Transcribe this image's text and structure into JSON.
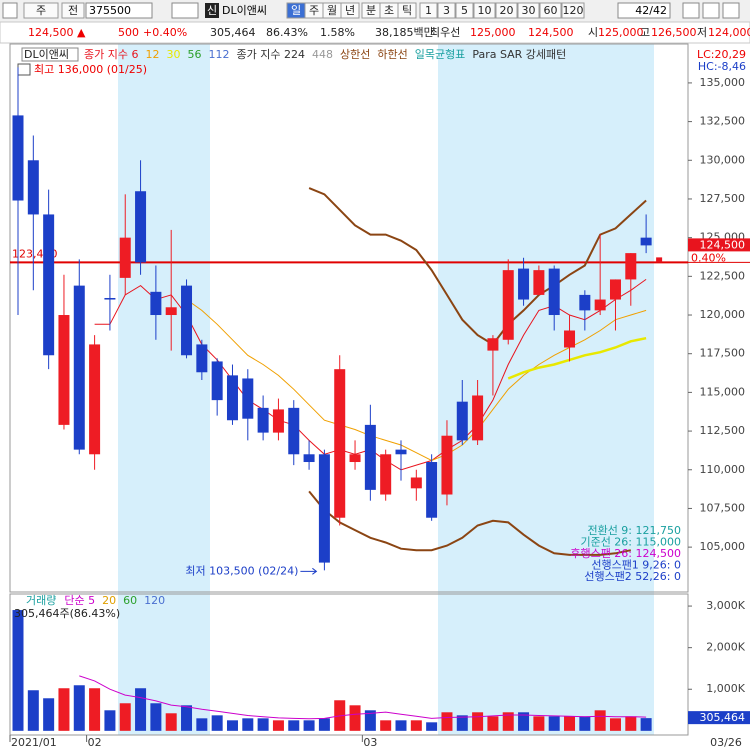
{
  "toolbar": {
    "market": "주",
    "board": "전",
    "code": "375500",
    "badge": "신",
    "name": "DL이앤씨",
    "periods": [
      "일",
      "주",
      "월",
      "년",
      "분",
      "초",
      "틱"
    ],
    "intervals": [
      "1",
      "3",
      "5",
      "10",
      "20",
      "30",
      "60",
      "120"
    ],
    "count": "42/42"
  },
  "quote": [
    "124,500 ▲",
    "500",
    "+0.40%",
    "305,464",
    "86.43%",
    "1.58%",
    "38,185백만",
    "최우선",
    "125,000",
    "124,500",
    "시",
    "125,000",
    "고",
    "126,500",
    "저",
    "124,000"
  ],
  "chart_data": [
    {
      "type": "candlestick",
      "stock_label": "DL이앤씨",
      "high_label": "최고 136,000 (01/25)",
      "low_label": "최저 103,500 (02/24)",
      "corner_lc": "LC:20,29",
      "corner_hc": "HC:-8,46",
      "categories": [
        "2021/01",
        null,
        null,
        null,
        null,
        "02",
        null,
        null,
        null,
        null,
        null,
        null,
        null,
        null,
        null,
        null,
        null,
        null,
        null,
        null,
        null,
        null,
        null,
        "03",
        null,
        null,
        null,
        null,
        null,
        null,
        null,
        null,
        null,
        null,
        null,
        null,
        null,
        null,
        null,
        null,
        null,
        null
      ],
      "open": [
        132900,
        130000,
        126500,
        112900,
        121900,
        111000,
        121100,
        122400,
        128000,
        121500,
        120000,
        121900,
        118100,
        117000,
        116100,
        115900,
        114000,
        112400,
        114000,
        111000,
        111000,
        106900,
        110500,
        112900,
        108400,
        111300,
        108800,
        110500,
        108400,
        114400,
        111900,
        117700,
        118400,
        123000,
        121300,
        123000,
        117900,
        121300,
        120300,
        121000,
        122300,
        125000
      ],
      "high": [
        136000,
        131600,
        128100,
        122600,
        123600,
        118700,
        122600,
        127800,
        130000,
        123200,
        125500,
        122300,
        118400,
        117200,
        116800,
        116500,
        114800,
        114600,
        114500,
        111900,
        111300,
        117400,
        111900,
        114200,
        111300,
        111900,
        110000,
        111000,
        113200,
        115800,
        115800,
        118700,
        123600,
        123700,
        123200,
        123200,
        120000,
        121600,
        125200,
        122300,
        124000,
        126500
      ],
      "low": [
        120000,
        121600,
        116500,
        112600,
        111000,
        110000,
        119000,
        121300,
        122600,
        118400,
        117700,
        117200,
        115800,
        113500,
        112900,
        111900,
        111900,
        111900,
        110300,
        110000,
        103500,
        106400,
        110000,
        108000,
        108000,
        109300,
        108000,
        106700,
        107700,
        111600,
        111600,
        114800,
        118100,
        120600,
        121300,
        119000,
        117000,
        119000,
        120000,
        119000,
        120600,
        124000
      ],
      "close": [
        127400,
        126500,
        117400,
        120000,
        111300,
        118100,
        121000,
        125000,
        123400,
        120000,
        120500,
        117400,
        116300,
        114500,
        113200,
        113300,
        112400,
        113900,
        111000,
        110500,
        104000,
        116500,
        111000,
        108700,
        111000,
        111000,
        109500,
        106900,
        112200,
        111900,
        114800,
        118500,
        122900,
        121000,
        122900,
        120000,
        119000,
        120300,
        121000,
        122300,
        124000,
        124500
      ],
      "up_color": "#ee1c24",
      "down_color": "#1c3fc8",
      "series": [
        {
          "name": "종가 지수 6",
          "color": "#e8141e",
          "values": [
            null,
            null,
            null,
            null,
            null,
            119400,
            119400,
            121300,
            121900,
            121000,
            121300,
            120000,
            118100,
            117100,
            115800,
            114500,
            113900,
            113200,
            112900,
            111900,
            111000,
            111300,
            111000,
            111300,
            110600,
            110000,
            110300,
            110600,
            111300,
            111900,
            112900,
            114500,
            116800,
            118700,
            120300,
            120600,
            120000,
            119700,
            120300,
            121000,
            121600,
            122300
          ]
        },
        {
          "name": "12",
          "color": "#f0a000",
          "values": [
            null,
            null,
            null,
            null,
            null,
            null,
            null,
            null,
            null,
            null,
            null,
            121000,
            120300,
            119400,
            118400,
            117400,
            116800,
            116100,
            115200,
            114200,
            113200,
            112900,
            112600,
            112200,
            111900,
            111600,
            111100,
            110600,
            111000,
            111600,
            112600,
            113900,
            115200,
            116100,
            116800,
            117400,
            117900,
            118400,
            119000,
            119700,
            120000,
            120300
          ]
        },
        {
          "name": "30",
          "color": "#e8e800",
          "values": [
            null,
            null,
            null,
            null,
            null,
            null,
            null,
            null,
            null,
            null,
            null,
            null,
            null,
            null,
            null,
            null,
            null,
            null,
            null,
            null,
            null,
            null,
            null,
            null,
            null,
            null,
            null,
            null,
            null,
            null,
            null,
            null,
            115900,
            116300,
            116600,
            116800,
            117100,
            117400,
            117600,
            117900,
            118300,
            118500
          ]
        },
        {
          "name": "56",
          "color": "#2ca02c"
        },
        {
          "name": "112",
          "color": "#4a6fd0"
        },
        {
          "name": "종가 지수 224",
          "color": "#333333"
        },
        {
          "name": "448",
          "color": "#999999"
        },
        {
          "name": "상한선",
          "color": "#8b4513",
          "values": [
            null,
            null,
            null,
            null,
            null,
            null,
            null,
            null,
            null,
            null,
            null,
            null,
            null,
            null,
            null,
            null,
            null,
            null,
            null,
            128200,
            127800,
            126800,
            125800,
            125200,
            125200,
            124800,
            124200,
            122900,
            121300,
            119700,
            118700,
            118100,
            119400,
            120300,
            121300,
            121900,
            122600,
            123200,
            125200,
            125600,
            126500,
            127400
          ]
        },
        {
          "name": "하한선",
          "color": "#8b4513",
          "values": [
            null,
            null,
            null,
            null,
            null,
            null,
            null,
            null,
            null,
            null,
            null,
            null,
            null,
            null,
            null,
            null,
            null,
            null,
            null,
            108600,
            107400,
            106600,
            106100,
            105600,
            105300,
            104900,
            104800,
            104800,
            105100,
            105600,
            106400,
            106700,
            106600,
            105800,
            105100,
            104600,
            104500,
            104500,
            104500,
            104600,
            104800,
            null
          ]
        },
        {
          "name": "일목균형표",
          "color": "#1aa0a0"
        },
        {
          "name": "Para SAR 강세패턴",
          "color": "#333333"
        }
      ],
      "ref_line": {
        "value": 123400,
        "label": "123,400",
        "color": "#e00000"
      },
      "last_label": "124,500",
      "change_label": "0.40%",
      "ichimoku_labels": [
        "전환선 9: 121,750",
        "기준선 26: 115,000",
        "후행스팬 26: 124,500",
        "선행스팬1 9,26: 0",
        "선행스팬2 52,26: 0"
      ],
      "ylim": [
        102100,
        137450
      ],
      "yticks": [
        {
          "value": 105000,
          "label": "105,000"
        },
        {
          "value": 107500,
          "label": "107,500"
        },
        {
          "value": 110000,
          "label": "110,000"
        },
        {
          "value": 112500,
          "label": "112,500"
        },
        {
          "value": 115000,
          "label": "115,000"
        },
        {
          "value": 117500,
          "label": "117,500"
        },
        {
          "value": 120000,
          "label": "120,000"
        },
        {
          "value": 122500,
          "label": "122,500"
        },
        {
          "value": 125000,
          "label": "125,000"
        },
        {
          "value": 127500,
          "label": "127,500"
        },
        {
          "value": 130000,
          "label": "130,000"
        },
        {
          "value": 132500,
          "label": "132,500"
        },
        {
          "value": 135000,
          "label": "135,000"
        }
      ],
      "date_label": "03/26"
    },
    {
      "type": "bar",
      "title": "거래량",
      "value_label": "305,464주(86.43%)",
      "last_label": "305,464",
      "values": [
        2904000,
        976000,
        783000,
        1024000,
        1096000,
        1024000,
        494000,
        663000,
        1024000,
        663000,
        422000,
        614000,
        301000,
        373000,
        253000,
        301000,
        301000,
        253000,
        253000,
        253000,
        301000,
        735000,
        614000,
        494000,
        253000,
        253000,
        253000,
        205000,
        446000,
        373000,
        446000,
        349000,
        446000,
        446000,
        349000,
        349000,
        349000,
        349000,
        494000,
        301000,
        349000,
        305464
      ],
      "series": [
        {
          "name": "단순 5",
          "color": "#cc00cc",
          "values": [
            null,
            null,
            null,
            null,
            1320000,
            1200000,
            1000000,
            860000,
            800000,
            720000,
            620000,
            580000,
            520000,
            470000,
            420000,
            370000,
            340000,
            310000,
            300000,
            290000,
            300000,
            360000,
            400000,
            420000,
            450000,
            400000,
            350000,
            300000,
            320000,
            330000,
            340000,
            360000,
            380000,
            380000,
            370000,
            360000,
            350000,
            340000,
            350000,
            340000,
            340000,
            330000
          ]
        },
        {
          "name": "20",
          "color": "#e0a000"
        },
        {
          "name": "60",
          "color": "#2ca02c"
        },
        {
          "name": "120",
          "color": "#4a6fd0"
        }
      ],
      "ylim": [
        -100000,
        3290000
      ],
      "yticks": [
        {
          "value": 1000000,
          "label": "1,000K"
        },
        {
          "value": 2000000,
          "label": "2,000K"
        },
        {
          "value": 3000000,
          "label": "3,000K"
        }
      ]
    }
  ]
}
